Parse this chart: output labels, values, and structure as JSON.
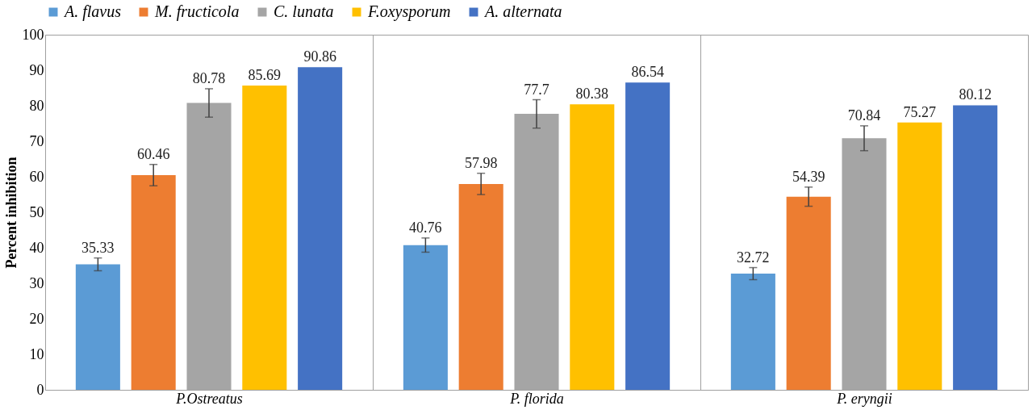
{
  "chart_data": {
    "type": "bar",
    "ylabel": "Percent inhibition",
    "categories": [
      "P.Ostreatus",
      "P. florida",
      "P. eryngii"
    ],
    "series": [
      {
        "name": "A. flavus",
        "color": "#5b9bd5",
        "values": [
          35.33,
          40.76,
          32.72
        ],
        "errors": [
          1.8,
          2,
          1.7
        ]
      },
      {
        "name": "M. fructicola",
        "color": "#ed7d31",
        "values": [
          60.46,
          57.98,
          54.39
        ],
        "errors": [
          3,
          3,
          2.7
        ]
      },
      {
        "name": "C. lunata",
        "color": "#a5a5a5",
        "values": [
          80.78,
          77.7,
          70.84
        ],
        "errors": [
          4,
          4,
          3.5
        ]
      },
      {
        "name": "F.oxysporum",
        "color": "#ffc000",
        "values": [
          85.69,
          80.38,
          75.27
        ]
      },
      {
        "name": "A. alternata",
        "color": "#4472c4",
        "values": [
          90.86,
          86.54,
          80.12
        ]
      }
    ],
    "ylim": [
      0,
      100
    ],
    "yticks": [
      0,
      10,
      20,
      30,
      40,
      50,
      60,
      70,
      80,
      90,
      100
    ],
    "grid": "x",
    "legend": "top",
    "data_labels": true
  }
}
